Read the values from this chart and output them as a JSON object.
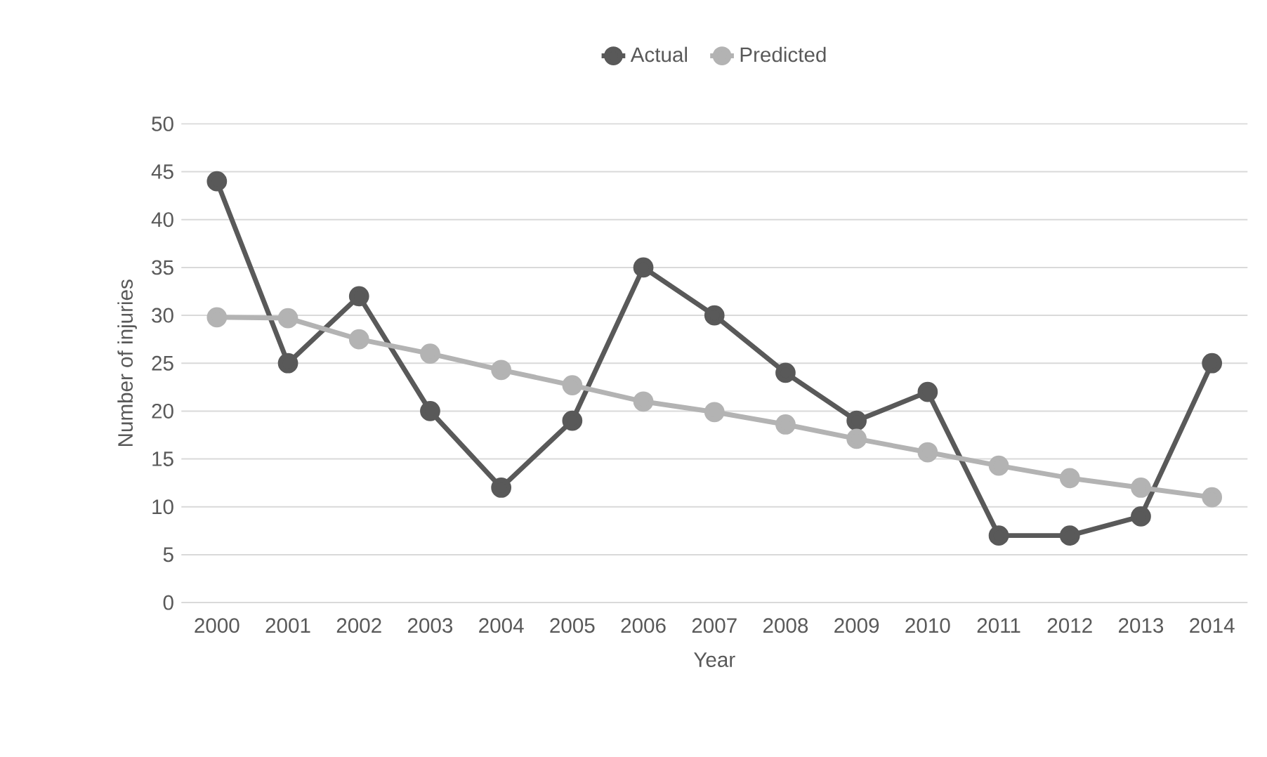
{
  "chart_data": {
    "type": "line",
    "categories": [
      "2000",
      "2001",
      "2002",
      "2003",
      "2004",
      "2005",
      "2006",
      "2007",
      "2008",
      "2009",
      "2010",
      "2011",
      "2012",
      "2013",
      "2014"
    ],
    "series": [
      {
        "name": "Actual",
        "color": "#595959",
        "values": [
          44,
          25,
          32,
          20,
          12,
          19,
          35,
          30,
          24,
          19,
          22,
          7,
          7,
          9,
          25
        ]
      },
      {
        "name": "Predicted",
        "color": "#b3b3b3",
        "values": [
          29.8,
          29.7,
          27.5,
          26.0,
          24.3,
          22.7,
          21.0,
          19.9,
          18.6,
          17.1,
          15.7,
          14.3,
          13.0,
          12.0,
          11.0
        ]
      }
    ],
    "xlabel": "Year",
    "ylabel": "Number of injuries",
    "ylim": [
      0,
      50
    ],
    "yticks": [
      0,
      5,
      10,
      15,
      20,
      25,
      30,
      35,
      40,
      45,
      50
    ],
    "grid": "y",
    "legend": "top",
    "marker": "circle",
    "line_style": "solid"
  }
}
